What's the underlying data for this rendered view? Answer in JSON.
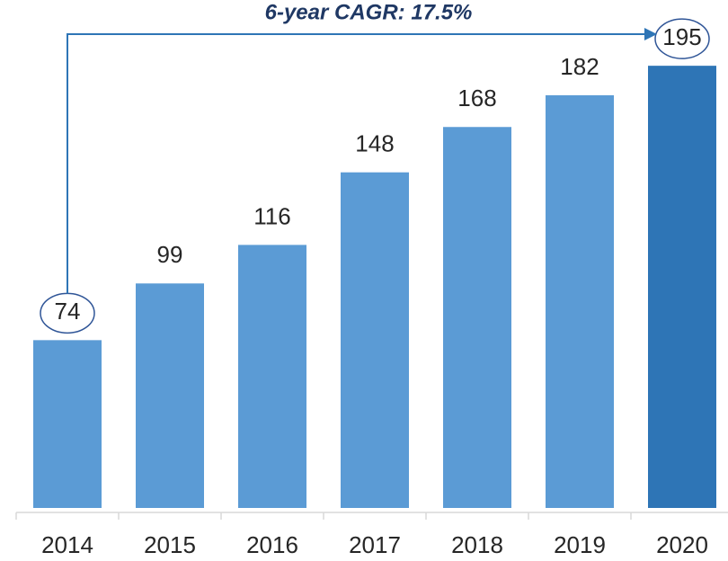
{
  "chart_data": {
    "type": "bar",
    "annotation": "6-year CAGR: 17.5%",
    "categories": [
      "2014",
      "2015",
      "2016",
      "2017",
      "2018",
      "2019",
      "2020"
    ],
    "values": [
      74,
      99,
      116,
      148,
      168,
      182,
      195
    ],
    "colors": [
      "#5b9bd5",
      "#5b9bd5",
      "#5b9bd5",
      "#5b9bd5",
      "#5b9bd5",
      "#5b9bd5",
      "#2e75b6"
    ],
    "ylim": [
      0,
      224
    ]
  }
}
